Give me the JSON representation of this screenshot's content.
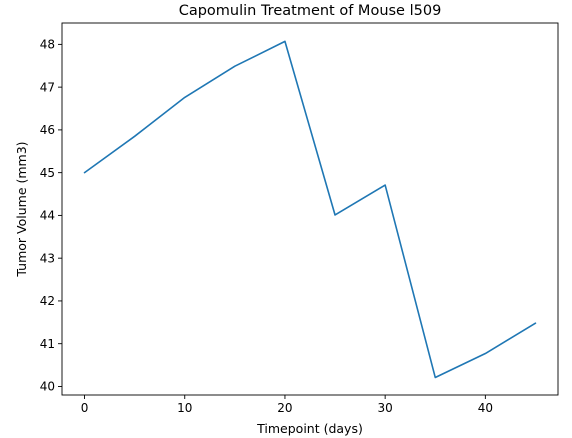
{
  "chart_data": {
    "type": "line",
    "title": "Capomulin Treatment of Mouse l509",
    "xlabel": "Timepoint (days)",
    "ylabel": "Tumor Volume (mm3)",
    "x": [
      0,
      5,
      10,
      15,
      20,
      25,
      30,
      35,
      40,
      45
    ],
    "series": [
      {
        "values": [
          45.0,
          45.85,
          46.76,
          47.49,
          48.07,
          44.01,
          44.71,
          40.21,
          40.77,
          41.48
        ],
        "color": "#1f77b4"
      }
    ],
    "xlim": [
      -2.25,
      47.25
    ],
    "ylim": [
      39.8,
      48.5
    ],
    "xticks": [
      0,
      10,
      20,
      30,
      40
    ],
    "yticks": [
      40,
      41,
      42,
      43,
      44,
      45,
      46,
      47,
      48
    ],
    "grid": false,
    "legend": "none"
  }
}
